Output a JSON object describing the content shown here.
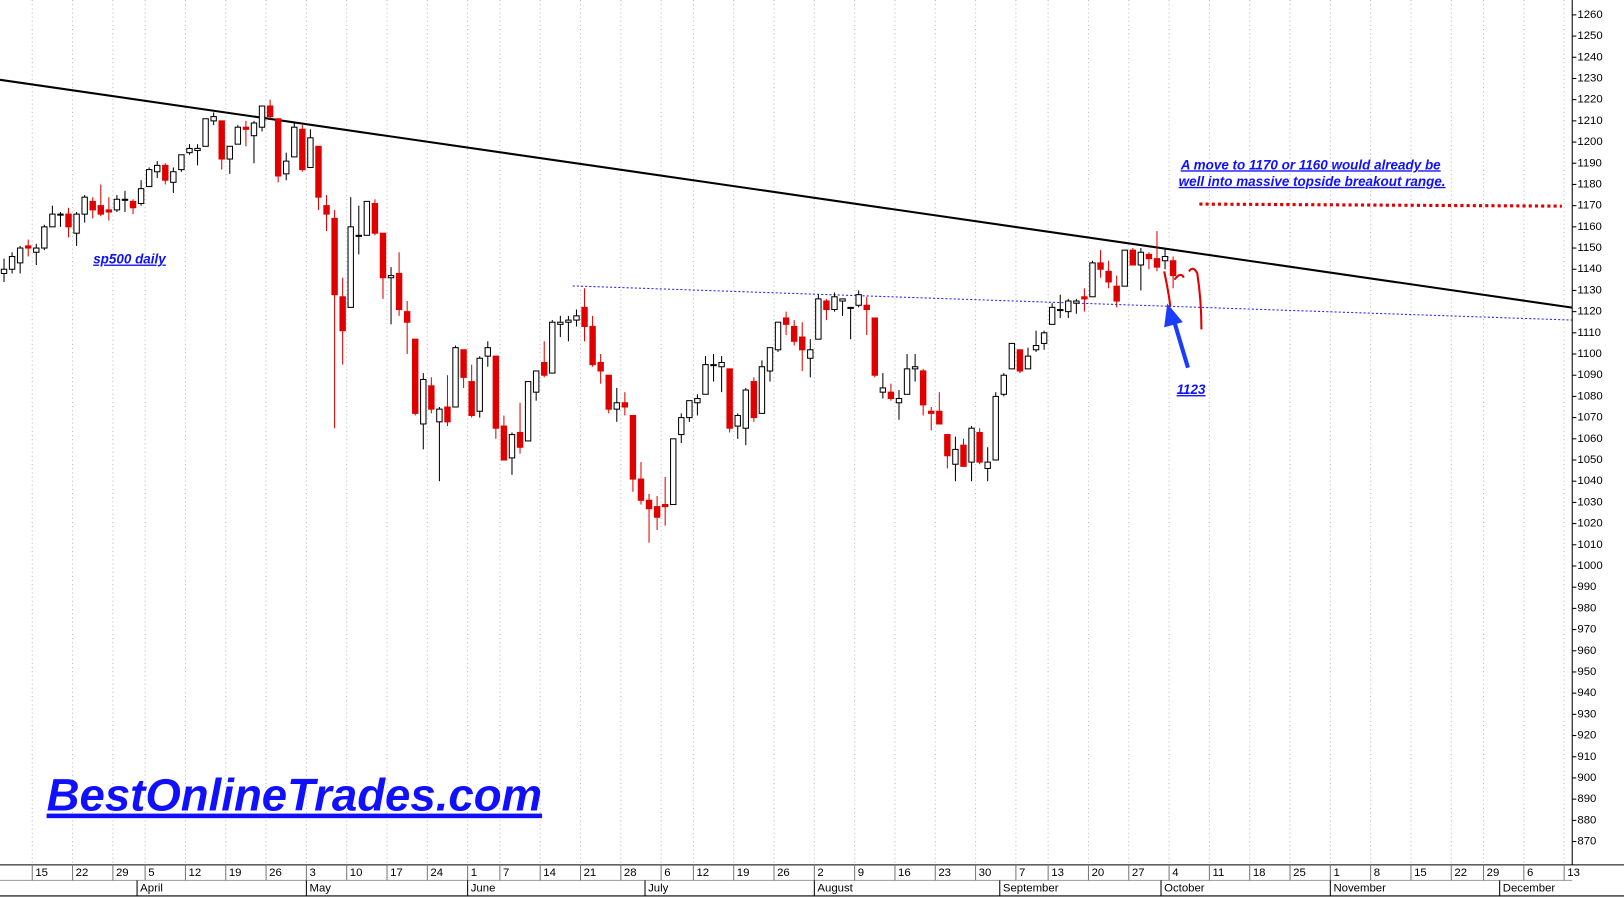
{
  "chart_data": {
    "type": "candlestick",
    "annotations": [
      "sp500 daily",
      "A move to 1170 or 1160 would already be",
      "well into massive topside breakout range.",
      "1123",
      "BestOnlineTrades.com"
    ],
    "ylim": [
      859,
      1267
    ],
    "yticks": [
      870,
      880,
      890,
      900,
      910,
      920,
      930,
      940,
      950,
      960,
      970,
      980,
      990,
      1000,
      1010,
      1020,
      1030,
      1040,
      1050,
      1060,
      1070,
      1080,
      1090,
      1100,
      1110,
      1120,
      1130,
      1140,
      1150,
      1160,
      1170,
      1180,
      1190,
      1200,
      1210,
      1220,
      1230,
      1240,
      1250,
      1260
    ],
    "up_color": "#ffffff",
    "down_color": "#e00000",
    "categories": [
      null,
      null,
      null,
      null,
      "15",
      null,
      null,
      null,
      null,
      "22",
      null,
      null,
      null,
      null,
      "29",
      null,
      null,
      null,
      "5",
      null,
      null,
      null,
      null,
      "12",
      null,
      null,
      null,
      null,
      "19",
      null,
      null,
      null,
      null,
      "26",
      null,
      null,
      null,
      null,
      "3",
      null,
      null,
      null,
      null,
      "10",
      null,
      null,
      null,
      null,
      "17",
      null,
      null,
      null,
      null,
      "24",
      null,
      null,
      null,
      null,
      "1",
      null,
      null,
      null,
      "7",
      null,
      null,
      null,
      null,
      "14",
      null,
      null,
      null,
      null,
      "21",
      null,
      null,
      null,
      null,
      "28",
      null,
      null,
      null,
      null,
      "6",
      null,
      null,
      null,
      "12",
      null,
      null,
      null,
      null,
      "19",
      null,
      null,
      null,
      null,
      "26",
      null,
      null,
      null,
      null,
      "2",
      null,
      null,
      null,
      null,
      "9",
      null,
      null,
      null,
      null,
      "16",
      null,
      null,
      null,
      null,
      "23",
      null,
      null,
      null,
      null,
      "30",
      null,
      null,
      null,
      null,
      "7",
      null,
      null,
      null,
      "13",
      null,
      null,
      null,
      null,
      "20",
      null,
      null,
      null,
      null,
      "27",
      null,
      null,
      null,
      null,
      "4",
      null,
      null,
      null,
      null,
      "11",
      null,
      null,
      null,
      null,
      "18",
      null,
      null,
      null,
      null,
      "25",
      null,
      null,
      null,
      null,
      "1",
      null,
      null,
      null,
      null,
      "8",
      null,
      null,
      null,
      null,
      "15",
      null,
      null,
      null,
      null,
      "22",
      null,
      null,
      null,
      "29",
      null,
      null,
      null,
      null,
      "6",
      null,
      null,
      null,
      null,
      "13"
    ],
    "months": [
      null,
      null,
      null,
      null,
      null,
      null,
      null,
      null,
      null,
      null,
      null,
      null,
      null,
      null,
      null,
      null,
      null,
      "April",
      null,
      null,
      null,
      null,
      null,
      null,
      null,
      null,
      null,
      null,
      null,
      null,
      null,
      null,
      null,
      null,
      null,
      null,
      null,
      null,
      "May",
      null,
      null,
      null,
      null,
      null,
      null,
      null,
      null,
      null,
      null,
      null,
      null,
      null,
      null,
      null,
      null,
      null,
      null,
      null,
      "June",
      null,
      null,
      null,
      null,
      null,
      null,
      null,
      null,
      null,
      null,
      null,
      null,
      null,
      null,
      null,
      null,
      null,
      null,
      null,
      null,
      null,
      "July",
      null,
      null,
      null,
      null,
      null,
      null,
      null,
      null,
      null,
      null,
      null,
      null,
      null,
      null,
      null,
      null,
      null,
      null,
      null,
      null,
      "August",
      null,
      null,
      null,
      null,
      null,
      null,
      null,
      null,
      null,
      null,
      null,
      null,
      null,
      null,
      null,
      null,
      null,
      null,
      null,
      null,
      null,
      null,
      "September",
      null,
      null,
      null,
      null,
      null,
      null,
      null,
      null,
      null,
      null,
      null,
      null,
      null,
      null,
      null,
      null,
      null,
      null,
      null,
      "October",
      null,
      null,
      null,
      null,
      null,
      null,
      null,
      null,
      null,
      null,
      null,
      null,
      null,
      null,
      null,
      null,
      null,
      null,
      null,
      null,
      "November",
      null,
      null,
      null,
      null,
      null,
      null,
      null,
      null,
      null,
      null,
      null,
      null,
      null,
      null,
      null,
      null,
      null,
      null,
      null,
      null,
      "December",
      null,
      null,
      null,
      null,
      null,
      null,
      null,
      null
    ],
    "values": [
      [
        1138,
        1145,
        1134,
        1140
      ],
      [
        1140,
        1148,
        1138,
        1146
      ],
      [
        1143,
        1151,
        1138,
        1150
      ],
      [
        1151,
        1154,
        1146,
        1150
      ],
      [
        1148,
        1152,
        1142,
        1150
      ],
      [
        1150,
        1161,
        1149,
        1160
      ],
      [
        1160,
        1170,
        1160,
        1166
      ],
      [
        1166,
        1167,
        1160,
        1166
      ],
      [
        1166,
        1169,
        1155,
        1160
      ],
      [
        1157,
        1167,
        1151,
        1166
      ],
      [
        1166,
        1175,
        1162,
        1174
      ],
      [
        1172,
        1174,
        1164,
        1168
      ],
      [
        1170,
        1180,
        1165,
        1166
      ],
      [
        1168,
        1174,
        1163,
        1167
      ],
      [
        1168,
        1175,
        1167,
        1173
      ],
      [
        1173,
        1177,
        1167,
        1173
      ],
      [
        1172,
        1173,
        1166,
        1169
      ],
      [
        1171,
        1182,
        1170,
        1178
      ],
      [
        1179,
        1188,
        1179,
        1187
      ],
      [
        1186,
        1191,
        1183,
        1189
      ],
      [
        1189,
        1190,
        1180,
        1182
      ],
      [
        1181,
        1188,
        1176,
        1186
      ],
      [
        1187,
        1194,
        1186,
        1194
      ],
      [
        1195,
        1199,
        1194,
        1197
      ],
      [
        1196,
        1199,
        1189,
        1197
      ],
      [
        1198,
        1211,
        1198,
        1211
      ],
      [
        1210,
        1214,
        1208,
        1212
      ],
      [
        1210,
        1210,
        1187,
        1192
      ],
      [
        1192,
        1198,
        1185,
        1198
      ],
      [
        1199,
        1208,
        1199,
        1207
      ],
      [
        1207,
        1210,
        1198,
        1206
      ],
      [
        1203,
        1210,
        1190,
        1209
      ],
      [
        1207,
        1217,
        1205,
        1217
      ],
      [
        1217,
        1220,
        1211,
        1212
      ],
      [
        1211,
        1211,
        1181,
        1184
      ],
      [
        1185,
        1195,
        1182,
        1191
      ],
      [
        1193,
        1209,
        1193,
        1207
      ],
      [
        1206,
        1208,
        1186,
        1187
      ],
      [
        1188,
        1206,
        1188,
        1202
      ],
      [
        1198,
        1198,
        1168,
        1174
      ],
      [
        1170,
        1175,
        1158,
        1166
      ],
      [
        1164,
        1168,
        1065,
        1128
      ],
      [
        1127,
        1136,
        1095,
        1111
      ],
      [
        1122,
        1174,
        1122,
        1160
      ],
      [
        1156,
        1170,
        1147,
        1156
      ],
      [
        1156,
        1172,
        1156,
        1172
      ],
      [
        1171,
        1173,
        1156,
        1157
      ],
      [
        1157,
        1157,
        1126,
        1136
      ],
      [
        1136,
        1141,
        1114,
        1137
      ],
      [
        1138,
        1148,
        1118,
        1121
      ],
      [
        1120,
        1125,
        1100,
        1115
      ],
      [
        1107,
        1107,
        1071,
        1072
      ],
      [
        1067,
        1091,
        1055,
        1088
      ],
      [
        1085,
        1089,
        1072,
        1074
      ],
      [
        1068,
        1075,
        1040,
        1074
      ],
      [
        1075,
        1090,
        1066,
        1068
      ],
      [
        1075,
        1104,
        1075,
        1103
      ],
      [
        1102,
        1102,
        1084,
        1089
      ],
      [
        1087,
        1095,
        1070,
        1071
      ],
      [
        1073,
        1099,
        1070,
        1098
      ],
      [
        1099,
        1106,
        1094,
        1103
      ],
      [
        1099,
        1099,
        1060,
        1065
      ],
      [
        1066,
        1071,
        1050,
        1050
      ],
      [
        1051,
        1063,
        1043,
        1062
      ],
      [
        1063,
        1077,
        1053,
        1056
      ],
      [
        1059,
        1087,
        1059,
        1087
      ],
      [
        1082,
        1092,
        1078,
        1092
      ],
      [
        1096,
        1106,
        1089,
        1090
      ],
      [
        1091,
        1116,
        1091,
        1115
      ],
      [
        1114,
        1118,
        1108,
        1115
      ],
      [
        1115,
        1118,
        1106,
        1116
      ],
      [
        1116,
        1121,
        1113,
        1118
      ],
      [
        1122,
        1131,
        1106,
        1113
      ],
      [
        1113,
        1118,
        1094,
        1095
      ],
      [
        1096,
        1100,
        1086,
        1092
      ],
      [
        1090,
        1090,
        1072,
        1074
      ],
      [
        1074,
        1084,
        1068,
        1077
      ],
      [
        1077,
        1082,
        1071,
        1075
      ],
      [
        1071,
        1071,
        1035,
        1041
      ],
      [
        1041,
        1049,
        1029,
        1031
      ],
      [
        1031,
        1034,
        1011,
        1027
      ],
      [
        1028,
        1033,
        1017,
        1023
      ],
      [
        1029,
        1042,
        1019,
        1028
      ],
      [
        1029,
        1060,
        1029,
        1060
      ],
      [
        1062,
        1072,
        1058,
        1070
      ],
      [
        1070,
        1078,
        1068,
        1078
      ],
      [
        1077,
        1081,
        1071,
        1079
      ],
      [
        1081,
        1099,
        1081,
        1095
      ],
      [
        1095,
        1100,
        1087,
        1095
      ],
      [
        1094,
        1099,
        1082,
        1096
      ],
      [
        1093,
        1093,
        1063,
        1065
      ],
      [
        1066,
        1072,
        1060,
        1071
      ],
      [
        1065,
        1084,
        1057,
        1083
      ],
      [
        1087,
        1089,
        1068,
        1070
      ],
      [
        1072,
        1097,
        1072,
        1094
      ],
      [
        1092,
        1103,
        1087,
        1103
      ],
      [
        1102,
        1115,
        1101,
        1115
      ],
      [
        1117,
        1120,
        1109,
        1114
      ],
      [
        1113,
        1116,
        1104,
        1106
      ],
      [
        1108,
        1115,
        1092,
        1102
      ],
      [
        1098,
        1107,
        1089,
        1102
      ],
      [
        1107,
        1128,
        1107,
        1126
      ],
      [
        1125,
        1126,
        1116,
        1121
      ],
      [
        1121,
        1129,
        1120,
        1127
      ],
      [
        1125,
        1126,
        1118,
        1126
      ],
      [
        1122,
        1122,
        1107,
        1122
      ],
      [
        1123,
        1130,
        1122,
        1128
      ],
      [
        1123,
        1127,
        1109,
        1121
      ],
      [
        1117,
        1117,
        1089,
        1090
      ],
      [
        1082,
        1091,
        1079,
        1084
      ],
      [
        1082,
        1086,
        1078,
        1079
      ],
      [
        1077,
        1083,
        1069,
        1079
      ],
      [
        1081,
        1100,
        1081,
        1093
      ],
      [
        1093,
        1100,
        1087,
        1094
      ],
      [
        1092,
        1093,
        1071,
        1076
      ],
      [
        1073,
        1075,
        1064,
        1072
      ],
      [
        1073,
        1082,
        1067,
        1067
      ],
      [
        1062,
        1062,
        1046,
        1052
      ],
      [
        1048,
        1061,
        1040,
        1055
      ],
      [
        1057,
        1060,
        1047,
        1047
      ],
      [
        1049,
        1066,
        1040,
        1065
      ],
      [
        1063,
        1065,
        1048,
        1049
      ],
      [
        1046,
        1056,
        1040,
        1049
      ],
      [
        1050,
        1082,
        1050,
        1080
      ],
      [
        1081,
        1091,
        1080,
        1090
      ],
      [
        1093,
        1105,
        1093,
        1105
      ],
      [
        1102,
        1102,
        1091,
        1092
      ],
      [
        1093,
        1103,
        1093,
        1099
      ],
      [
        1102,
        1111,
        1101,
        1104
      ],
      [
        1105,
        1111,
        1102,
        1110
      ],
      [
        1114,
        1124,
        1114,
        1122
      ],
      [
        1121,
        1128,
        1117,
        1121
      ],
      [
        1120,
        1126,
        1117,
        1125
      ],
      [
        1124,
        1126,
        1119,
        1125
      ],
      [
        1127,
        1131,
        1120,
        1126
      ],
      [
        1127,
        1144,
        1127,
        1143
      ],
      [
        1143,
        1149,
        1136,
        1140
      ],
      [
        1139,
        1144,
        1131,
        1134
      ],
      [
        1132,
        1137,
        1122,
        1125
      ],
      [
        1132,
        1149,
        1132,
        1149
      ],
      [
        1149,
        1150,
        1142,
        1142
      ],
      [
        1142,
        1150,
        1130,
        1148
      ],
      [
        1147,
        1148,
        1140,
        1145
      ],
      [
        1145,
        1158,
        1139,
        1141
      ],
      [
        1144,
        1150,
        1140,
        1146
      ],
      [
        1144,
        1146,
        1131,
        1137
      ],
      null,
      null,
      null,
      null,
      null,
      null,
      null,
      null,
      null,
      null,
      null,
      null,
      null,
      null,
      null,
      null,
      null,
      null,
      null,
      null,
      null,
      null,
      null,
      null,
      null,
      null,
      null,
      null,
      null,
      null,
      null,
      null,
      null,
      null,
      null,
      null,
      null,
      null,
      null,
      null,
      null,
      null,
      null,
      null,
      null,
      null,
      null,
      null,
      null
    ]
  }
}
